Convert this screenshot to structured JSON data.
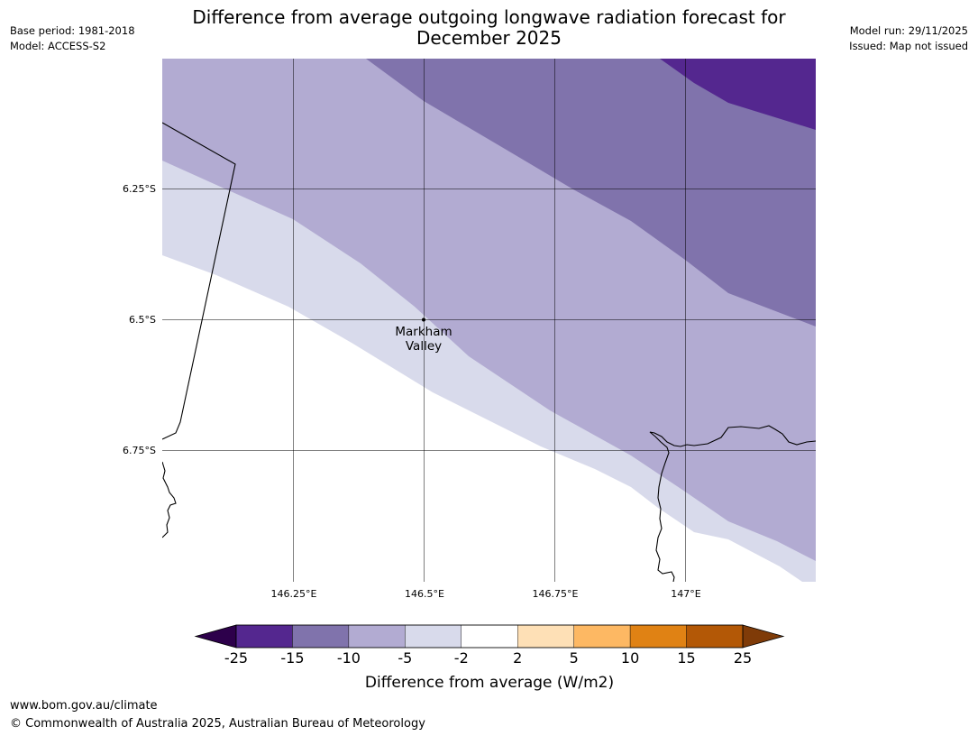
{
  "title": "Difference from average outgoing longwave radiation forecast for December 2025",
  "title_lines": [
    "Difference from average outgoing longwave radiation forecast for",
    "December 2025"
  ],
  "header_left": {
    "base_period": "Base period: 1981-2018",
    "model": "Model: ACCESS-S2"
  },
  "header_right": {
    "model_run": "Model run: 29/11/2025",
    "issued": "Issued: Map not issued"
  },
  "map": {
    "lat_ticks": [
      "6.25°S",
      "6.5°S",
      "6.75°S"
    ],
    "lon_ticks": [
      "146.25°E",
      "146.5°E",
      "146.75°E",
      "147°E"
    ],
    "place_label": [
      "Markham",
      "Valley"
    ],
    "place_name": "Markham Valley",
    "place_lon": 146.5,
    "place_lat": -6.5
  },
  "legend": {
    "title": "Difference from average (W/m2)",
    "bounds": [
      "-25",
      "-15",
      "-10",
      "-5",
      "-2",
      "2",
      "5",
      "10",
      "15",
      "25"
    ],
    "colors": [
      "#54278f",
      "#8073ac",
      "#b2abd2",
      "#d8daeb",
      "#ffffff",
      "#fee0b6",
      "#fdb863",
      "#e08214",
      "#b35806"
    ],
    "extend_low_color": "#2d004b",
    "extend_high_color": "#7f3b08"
  },
  "colors": {
    "band_lt_minus_15": "#54278f",
    "band_minus_15_to_minus_10": "#8073ac",
    "band_minus_10_to_minus_5": "#b2abd2",
    "band_minus_5_to_minus_2": "#d8daeb",
    "band_near_average": "#ffffff"
  },
  "footer": {
    "url": "www.bom.gov.au/climate",
    "copyright": "© Commonwealth of Australia 2025, Australian Bureau of Meteorology"
  }
}
